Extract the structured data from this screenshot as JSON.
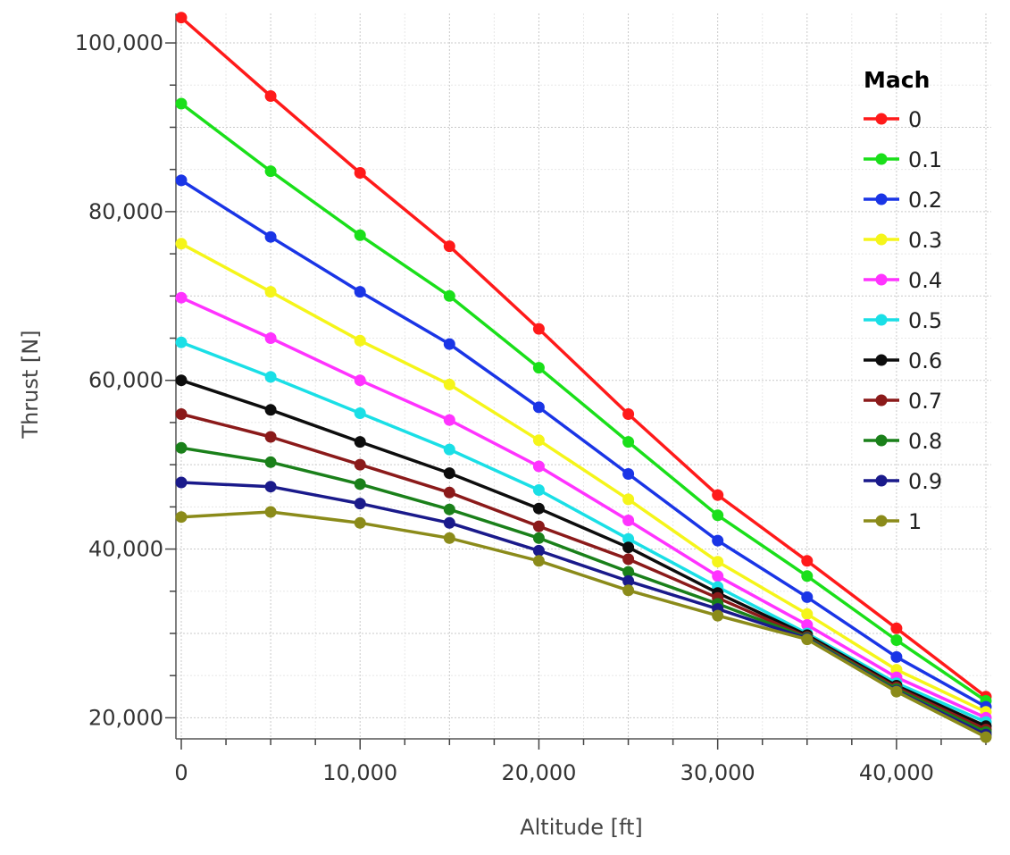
{
  "chart_data": {
    "type": "line",
    "title": "",
    "xlabel": "Altitude [ft]",
    "ylabel": "Thrust [N]",
    "xlim": [
      -300,
      45300
    ],
    "ylim": [
      17500,
      103500
    ],
    "grid": true,
    "x": [
      0,
      5000,
      10000,
      15000,
      20000,
      25000,
      30000,
      35000,
      40000,
      45000
    ],
    "x_ticks": [
      {
        "value": 0,
        "label": "0"
      },
      {
        "value": 10000,
        "label": "10,000"
      },
      {
        "value": 20000,
        "label": "20,000"
      },
      {
        "value": 30000,
        "label": "30,000"
      },
      {
        "value": 40000,
        "label": "40,000"
      }
    ],
    "y_ticks": [
      {
        "value": 20000,
        "label": "20,000"
      },
      {
        "value": 40000,
        "label": "40,000"
      },
      {
        "value": 60000,
        "label": "60,000"
      },
      {
        "value": 80000,
        "label": "80,000"
      },
      {
        "value": 100000,
        "label": "100,000"
      }
    ],
    "legend": {
      "title": "Mach",
      "position": "top-right"
    },
    "series": [
      {
        "name": "0",
        "color": "#ff1a1a",
        "values": [
          103000,
          93700,
          84600,
          75900,
          66100,
          56000,
          46400,
          38600,
          30600,
          22500
        ]
      },
      {
        "name": "0.1",
        "color": "#1adf1a",
        "values": [
          92800,
          84800,
          77200,
          70000,
          61500,
          52700,
          44000,
          36800,
          29200,
          22000
        ]
      },
      {
        "name": "0.2",
        "color": "#1a35e6",
        "values": [
          83700,
          77000,
          70500,
          64300,
          56800,
          48900,
          41000,
          34300,
          27200,
          21300
        ]
      },
      {
        "name": "0.3",
        "color": "#f5f51a",
        "values": [
          76200,
          70500,
          64700,
          59500,
          52900,
          45900,
          38500,
          32300,
          25700,
          20700
        ]
      },
      {
        "name": "0.4",
        "color": "#ff33ff",
        "values": [
          69800,
          65000,
          60000,
          55300,
          49800,
          43400,
          36800,
          31000,
          24800,
          20000
        ]
      },
      {
        "name": "0.5",
        "color": "#1adfe6",
        "values": [
          64500,
          60400,
          56100,
          51800,
          47000,
          41200,
          35500,
          30000,
          24100,
          19500
        ]
      },
      {
        "name": "0.6",
        "color": "#0d0d0d",
        "values": [
          60000,
          56500,
          52700,
          49000,
          44800,
          40200,
          34800,
          29800,
          23800,
          19000
        ]
      },
      {
        "name": "0.7",
        "color": "#8b1a1a",
        "values": [
          56000,
          53300,
          50000,
          46700,
          42700,
          38800,
          34200,
          29600,
          23600,
          18600
        ]
      },
      {
        "name": "0.8",
        "color": "#1a801a",
        "values": [
          52000,
          50300,
          47700,
          44700,
          41300,
          37300,
          33500,
          29500,
          23400,
          18300
        ]
      },
      {
        "name": "0.9",
        "color": "#1a1a8b",
        "values": [
          47900,
          47400,
          45400,
          43100,
          39800,
          36200,
          32900,
          29400,
          23200,
          18000
        ]
      },
      {
        "name": "1",
        "color": "#8b8b1a",
        "values": [
          43800,
          44400,
          43100,
          41300,
          38600,
          35100,
          32100,
          29300,
          23100,
          17700
        ]
      }
    ]
  }
}
